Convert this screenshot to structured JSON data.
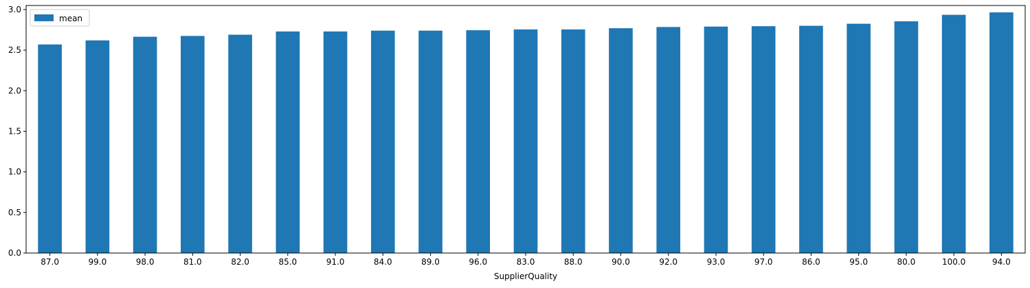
{
  "chart_data": {
    "type": "bar",
    "title": "",
    "xlabel": "SupplierQuality",
    "ylabel": "",
    "categories": [
      "87.0",
      "99.0",
      "98.0",
      "81.0",
      "82.0",
      "85.0",
      "91.0",
      "84.0",
      "89.0",
      "96.0",
      "83.0",
      "88.0",
      "90.0",
      "92.0",
      "93.0",
      "97.0",
      "86.0",
      "95.0",
      "80.0",
      "100.0",
      "94.0"
    ],
    "series": [
      {
        "name": "mean",
        "color": "#1f77b4",
        "values": [
          2.57,
          2.62,
          2.665,
          2.675,
          2.69,
          2.73,
          2.73,
          2.74,
          2.74,
          2.745,
          2.755,
          2.755,
          2.77,
          2.785,
          2.79,
          2.795,
          2.8,
          2.825,
          2.855,
          2.935,
          2.965
        ]
      }
    ],
    "ylim": [
      0,
      3.05
    ],
    "yticks": [
      "0.0",
      "0.5",
      "1.0",
      "1.5",
      "2.0",
      "2.5",
      "3.0"
    ],
    "legend_position": "top-left",
    "grid": false
  }
}
